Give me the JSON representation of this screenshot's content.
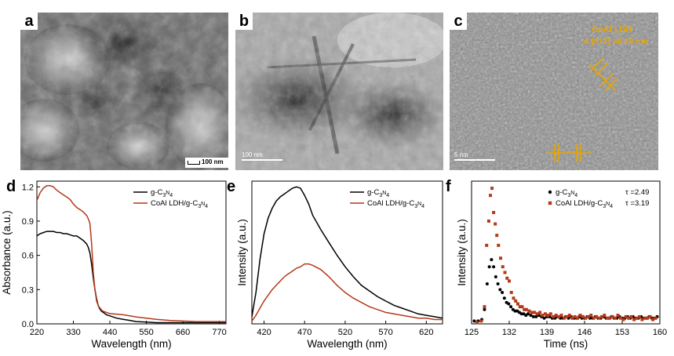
{
  "panels": {
    "a": {
      "letter": "a",
      "scalebar": "100 nm"
    },
    "b": {
      "letter": "b",
      "scalebar": "100 nm"
    },
    "c": {
      "letter": "c",
      "scalebar": "5 nm",
      "annotation_line1": "CoAl LDH",
      "annotation_line2": "d (012) =0.26 nm"
    },
    "d": {
      "letter": "d"
    },
    "e": {
      "letter": "e"
    },
    "f": {
      "letter": "f"
    }
  },
  "colors": {
    "black_series": "#000000",
    "orange_series": "#b5391a",
    "annotation": "#e8a500"
  },
  "chart_data": [
    {
      "panel": "d",
      "type": "line",
      "xlabel": "Wavelength (nm)",
      "ylabel": "Absorbance (a.u.)",
      "xlim": [
        220,
        790
      ],
      "ylim": [
        0,
        1.25
      ],
      "xticks": [
        "220",
        "330",
        "440",
        "550",
        "660",
        "770"
      ],
      "yticks": [
        "0.0",
        "0.3",
        "0.6",
        "0.9",
        "1.2"
      ],
      "legend_position": "top-right",
      "series": [
        {
          "name_base": "g-C",
          "name_sub1": "3",
          "name_mid": "N",
          "name_sub2": "4",
          "x": [
            220,
            230,
            240,
            250,
            260,
            270,
            280,
            290,
            300,
            310,
            320,
            330,
            340,
            350,
            360,
            370,
            375,
            380,
            385,
            390,
            395,
            400,
            405,
            410,
            415,
            420,
            430,
            440,
            460,
            480,
            500,
            520,
            550,
            580,
            620,
            660,
            700,
            740,
            790
          ],
          "y": [
            0.77,
            0.79,
            0.8,
            0.81,
            0.81,
            0.81,
            0.8,
            0.8,
            0.79,
            0.79,
            0.78,
            0.77,
            0.77,
            0.75,
            0.73,
            0.7,
            0.67,
            0.62,
            0.52,
            0.4,
            0.3,
            0.22,
            0.16,
            0.13,
            0.11,
            0.1,
            0.08,
            0.07,
            0.05,
            0.04,
            0.03,
            0.02,
            0.015,
            0.01,
            0.01,
            0.01,
            0.01,
            0.01,
            0.01
          ]
        },
        {
          "name_base": "CoAl LDH/g-C",
          "name_sub1": "3",
          "name_mid": "N",
          "name_sub2": "4",
          "x": [
            220,
            230,
            240,
            250,
            260,
            270,
            280,
            290,
            300,
            310,
            320,
            330,
            340,
            350,
            360,
            370,
            375,
            380,
            385,
            390,
            395,
            400,
            405,
            410,
            415,
            420,
            430,
            440,
            460,
            480,
            500,
            520,
            550,
            580,
            620,
            660,
            700,
            740,
            790
          ],
          "y": [
            1.08,
            1.15,
            1.19,
            1.21,
            1.21,
            1.2,
            1.17,
            1.15,
            1.13,
            1.11,
            1.09,
            1.05,
            1.02,
            1.0,
            0.98,
            0.95,
            0.92,
            0.88,
            0.7,
            0.45,
            0.3,
            0.2,
            0.16,
            0.14,
            0.12,
            0.11,
            0.1,
            0.09,
            0.085,
            0.08,
            0.07,
            0.06,
            0.05,
            0.04,
            0.03,
            0.025,
            0.02,
            0.02,
            0.02
          ]
        }
      ]
    },
    {
      "panel": "e",
      "type": "line",
      "xlabel": "Wavelength (nm)",
      "ylabel": "Intensity (a.u.)",
      "xlim": [
        405,
        640
      ],
      "ylim": [
        0,
        1
      ],
      "xticks": [
        "420",
        "470",
        "520",
        "570",
        "620"
      ],
      "legend_position": "top-right",
      "series": [
        {
          "name_base": "g-C",
          "name_sub1": "3",
          "name_mid": "N",
          "name_sub2": "4",
          "x": [
            405,
            410,
            415,
            420,
            425,
            430,
            435,
            440,
            445,
            450,
            455,
            460,
            465,
            470,
            475,
            480,
            490,
            500,
            510,
            520,
            530,
            540,
            550,
            560,
            570,
            580,
            590,
            600,
            610,
            620,
            630,
            640
          ],
          "y": [
            0.05,
            0.22,
            0.45,
            0.63,
            0.74,
            0.81,
            0.86,
            0.89,
            0.91,
            0.93,
            0.95,
            0.96,
            0.95,
            0.9,
            0.84,
            0.76,
            0.66,
            0.57,
            0.48,
            0.4,
            0.33,
            0.27,
            0.23,
            0.19,
            0.16,
            0.13,
            0.11,
            0.09,
            0.07,
            0.06,
            0.05,
            0.04
          ]
        },
        {
          "name_base": "CoAl LDH/g-C",
          "name_sub1": "3",
          "name_mid": "N",
          "name_sub2": "4",
          "x": [
            405,
            410,
            415,
            420,
            425,
            430,
            435,
            440,
            445,
            450,
            455,
            460,
            465,
            470,
            475,
            480,
            490,
            500,
            510,
            520,
            530,
            540,
            550,
            560,
            570,
            580,
            590,
            600,
            610,
            620,
            630,
            640
          ],
          "y": [
            0.02,
            0.06,
            0.11,
            0.16,
            0.2,
            0.24,
            0.27,
            0.3,
            0.33,
            0.35,
            0.37,
            0.39,
            0.4,
            0.42,
            0.42,
            0.41,
            0.38,
            0.33,
            0.27,
            0.22,
            0.18,
            0.15,
            0.12,
            0.1,
            0.08,
            0.07,
            0.06,
            0.05,
            0.04,
            0.04,
            0.03,
            0.03
          ]
        }
      ]
    },
    {
      "panel": "f",
      "type": "scatter",
      "xlabel": "Time (ns)",
      "ylabel": "Intensity (a.u.)",
      "xlim": [
        125,
        160
      ],
      "ylim": [
        0,
        1
      ],
      "xticks": [
        "125",
        "132",
        "139",
        "146",
        "153",
        "160"
      ],
      "legend_position": "top-right",
      "series": [
        {
          "name_base": "g-C",
          "name_sub1": "3",
          "name_mid": "N",
          "name_sub2": "4",
          "tau_label": "τ =2.49",
          "marker": "circle",
          "x": [
            125.5,
            126.2,
            126.9,
            127.4,
            127.9,
            128.3,
            128.7,
            129.1,
            129.5,
            129.9,
            130.3,
            130.7,
            131.1,
            131.5,
            131.9,
            132.3,
            132.7,
            133.1,
            133.5,
            133.9,
            134.3,
            134.7,
            135.1,
            135.5,
            136.0,
            136.5,
            137.0,
            137.5,
            138.0,
            138.5,
            139.0,
            139.5,
            140.0,
            140.5,
            141.0,
            141.5,
            142.0,
            142.5,
            143.0,
            143.5,
            144.0,
            144.5,
            145.0,
            145.5,
            146.0,
            146.5,
            147.0,
            147.5,
            148.0,
            148.5,
            149.0,
            149.5,
            150.0,
            150.5,
            151.0,
            151.5,
            152.0,
            152.5,
            153.0,
            153.5,
            154.0,
            154.5,
            155.0,
            155.5,
            156.0,
            156.5,
            157.0,
            157.5,
            158.0,
            158.5,
            159.0,
            159.5
          ],
          "y": [
            0.02,
            0.02,
            0.03,
            0.1,
            0.28,
            0.4,
            0.45,
            0.4,
            0.33,
            0.28,
            0.24,
            0.22,
            0.18,
            0.15,
            0.14,
            0.12,
            0.1,
            0.09,
            0.09,
            0.08,
            0.07,
            0.07,
            0.06,
            0.07,
            0.06,
            0.05,
            0.05,
            0.06,
            0.05,
            0.04,
            0.05,
            0.05,
            0.04,
            0.04,
            0.05,
            0.04,
            0.04,
            0.05,
            0.04,
            0.05,
            0.04,
            0.04,
            0.05,
            0.04,
            0.04,
            0.05,
            0.04,
            0.04,
            0.05,
            0.04,
            0.04,
            0.05,
            0.04,
            0.04,
            0.05,
            0.04,
            0.04,
            0.05,
            0.04,
            0.04,
            0.05,
            0.04,
            0.05,
            0.04,
            0.04,
            0.05,
            0.04,
            0.04,
            0.05,
            0.04,
            0.04,
            0.05
          ]
        },
        {
          "name_base": "CoAl LDH/g-C",
          "name_sub1": "3",
          "name_mid": "N",
          "name_sub2": "4",
          "tau_label": "τ =3.19",
          "marker": "square",
          "x": [
            126.0,
            126.8,
            127.4,
            127.8,
            128.2,
            128.5,
            128.8,
            129.1,
            129.4,
            129.7,
            130.0,
            130.4,
            130.8,
            131.2,
            131.6,
            132.0,
            132.4,
            132.8,
            133.2,
            133.6,
            134.0,
            134.4,
            134.8,
            135.2,
            135.7,
            136.2,
            136.7,
            137.2,
            137.7,
            138.2,
            138.7,
            139.2,
            139.7,
            140.2,
            140.7,
            141.2,
            141.7,
            142.2,
            142.7,
            143.2,
            143.7,
            144.2,
            144.7,
            145.2,
            145.7,
            146.2,
            146.7,
            147.2,
            147.7,
            148.2,
            148.7,
            149.2,
            149.7,
            150.2,
            150.7,
            151.2,
            151.7,
            152.2,
            152.7,
            153.2,
            153.7,
            154.2,
            154.7,
            155.2,
            155.7,
            156.2,
            156.7,
            157.2,
            157.7,
            158.2,
            158.7,
            159.2
          ],
          "y": [
            0.01,
            0.02,
            0.12,
            0.55,
            0.72,
            0.9,
            0.95,
            0.78,
            0.7,
            0.62,
            0.55,
            0.46,
            0.4,
            0.36,
            0.32,
            0.3,
            0.22,
            0.18,
            0.16,
            0.14,
            0.12,
            0.12,
            0.1,
            0.1,
            0.09,
            0.08,
            0.08,
            0.07,
            0.08,
            0.06,
            0.07,
            0.06,
            0.07,
            0.05,
            0.06,
            0.05,
            0.06,
            0.04,
            0.05,
            0.06,
            0.04,
            0.05,
            0.04,
            0.06,
            0.05,
            0.04,
            0.05,
            0.06,
            0.04,
            0.05,
            0.04,
            0.05,
            0.06,
            0.04,
            0.04,
            0.05,
            0.04,
            0.06,
            0.04,
            0.03,
            0.05,
            0.04,
            0.05,
            0.03,
            0.04,
            0.05,
            0.03,
            0.04,
            0.04,
            0.05,
            0.03,
            0.04
          ]
        }
      ]
    }
  ]
}
